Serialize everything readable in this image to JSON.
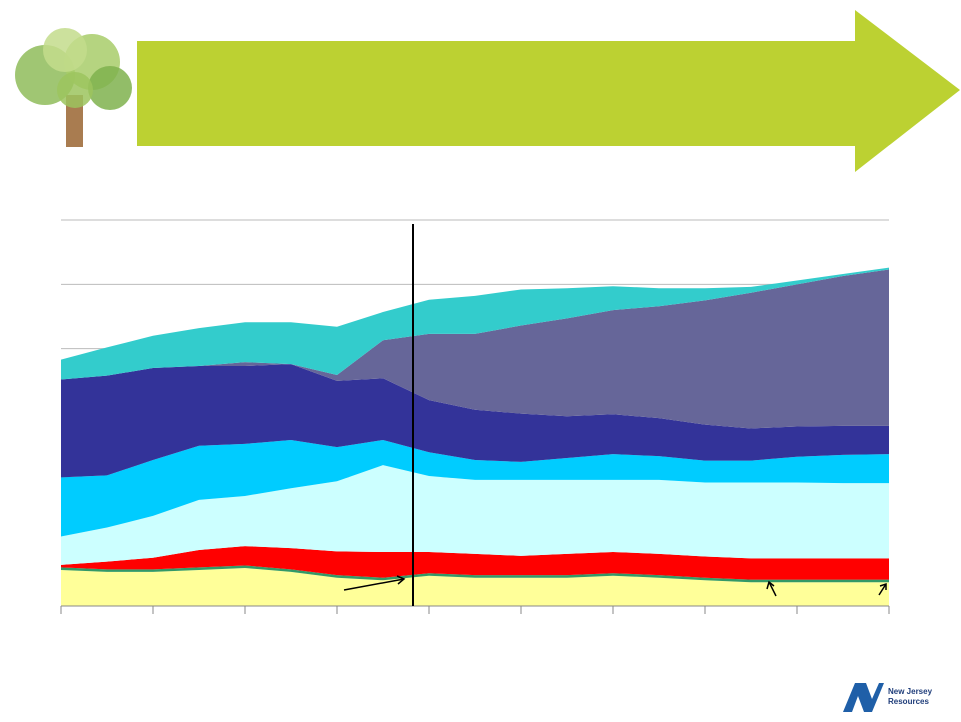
{
  "chart_data": {
    "type": "area",
    "stacked": true,
    "x": [
      0,
      2,
      4,
      6,
      8,
      10,
      12,
      14,
      16,
      18,
      20,
      22,
      24,
      26,
      28,
      30,
      32,
      34,
      36
    ],
    "xlim": [
      0,
      36
    ],
    "xticks": [
      0,
      4,
      8,
      12,
      16,
      20,
      24,
      28,
      32,
      36
    ],
    "ylim": [
      0,
      6
    ],
    "yticks": [
      0,
      1,
      2,
      3,
      4,
      5,
      6
    ],
    "grid": true,
    "series": [
      {
        "color": "#ffff99",
        "values": [
          0.56,
          0.53,
          0.53,
          0.56,
          0.59,
          0.53,
          0.44,
          0.4,
          0.47,
          0.44,
          0.44,
          0.44,
          0.47,
          0.44,
          0.4,
          0.37,
          0.37,
          0.37,
          0.37
        ]
      },
      {
        "color": "#339966",
        "values": [
          0.04,
          0.04,
          0.04,
          0.04,
          0.04,
          0.04,
          0.04,
          0.04,
          0.04,
          0.04,
          0.04,
          0.04,
          0.04,
          0.04,
          0.04,
          0.04,
          0.04,
          0.04,
          0.04
        ]
      },
      {
        "color": "#ff0000",
        "values": [
          0.04,
          0.12,
          0.18,
          0.27,
          0.3,
          0.33,
          0.37,
          0.4,
          0.33,
          0.33,
          0.3,
          0.33,
          0.33,
          0.33,
          0.33,
          0.33,
          0.33,
          0.33,
          0.33
        ]
      },
      {
        "color": "#ccffff",
        "values": [
          0.44,
          0.53,
          0.65,
          0.78,
          0.78,
          0.93,
          1.09,
          1.35,
          1.18,
          1.15,
          1.18,
          1.15,
          1.12,
          1.15,
          1.15,
          1.18,
          1.18,
          1.17,
          1.17
        ]
      },
      {
        "color": "#00ccff",
        "values": [
          0.92,
          0.81,
          0.87,
          0.84,
          0.81,
          0.75,
          0.53,
          0.39,
          0.37,
          0.31,
          0.28,
          0.34,
          0.4,
          0.37,
          0.34,
          0.34,
          0.4,
          0.44,
          0.45
        ]
      },
      {
        "color": "#333399",
        "values": [
          1.52,
          1.55,
          1.43,
          1.24,
          1.21,
          1.18,
          1.03,
          0.96,
          0.81,
          0.78,
          0.75,
          0.65,
          0.62,
          0.59,
          0.56,
          0.5,
          0.47,
          0.45,
          0.44
        ]
      },
      {
        "color": "#666699",
        "values": [
          0,
          0,
          0,
          0,
          0.06,
          0,
          0.09,
          0.59,
          1.03,
          1.18,
          1.37,
          1.52,
          1.62,
          1.74,
          1.93,
          2.11,
          2.21,
          2.33,
          2.43
        ]
      },
      {
        "color": "#33cccc",
        "values": [
          0.31,
          0.44,
          0.5,
          0.59,
          0.62,
          0.65,
          0.75,
          0.44,
          0.53,
          0.59,
          0.56,
          0.47,
          0.37,
          0.28,
          0.19,
          0.09,
          0.06,
          0.03,
          0.03
        ]
      }
    ]
  },
  "logo": {
    "lines": [
      "New Jersey",
      "Resources"
    ]
  }
}
